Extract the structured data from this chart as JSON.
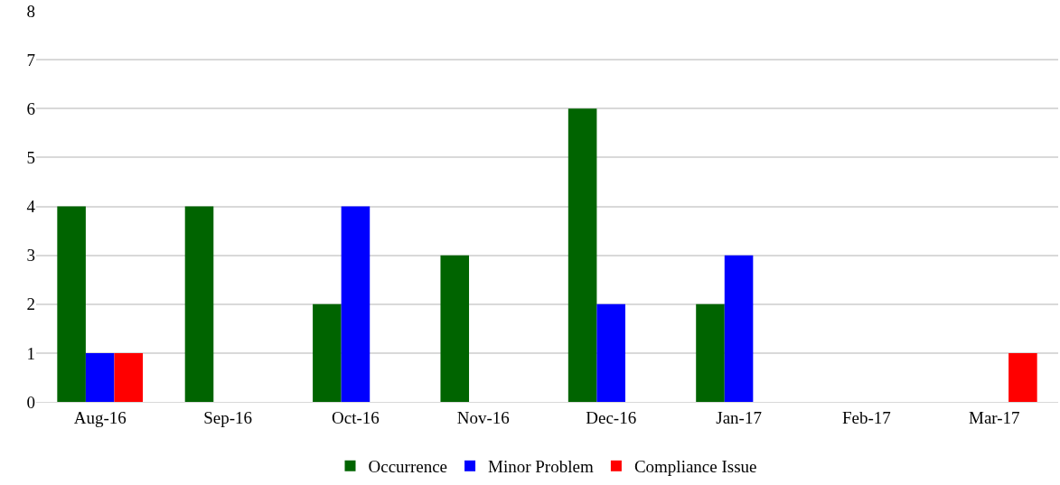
{
  "chart_data": {
    "type": "bar",
    "categories": [
      "Aug-16",
      "Sep-16",
      "Oct-16",
      "Nov-16",
      "Dec-16",
      "Jan-17",
      "Feb-17",
      "Mar-17"
    ],
    "series": [
      {
        "name": "Occurrence",
        "color": "#006400",
        "values": [
          4,
          4,
          2,
          3,
          6,
          2,
          0,
          0
        ]
      },
      {
        "name": "Minor Problem",
        "color": "#0000ff",
        "values": [
          1,
          0,
          4,
          0,
          2,
          3,
          0,
          0
        ]
      },
      {
        "name": "Compliance Issue",
        "color": "#ff0000",
        "values": [
          1,
          0,
          0,
          0,
          0,
          0,
          0,
          1
        ]
      }
    ],
    "ylim": [
      0,
      8
    ],
    "yticks": [
      0,
      1,
      2,
      3,
      4,
      5,
      6,
      7,
      8
    ],
    "grid": "y",
    "legend": "bottom"
  }
}
